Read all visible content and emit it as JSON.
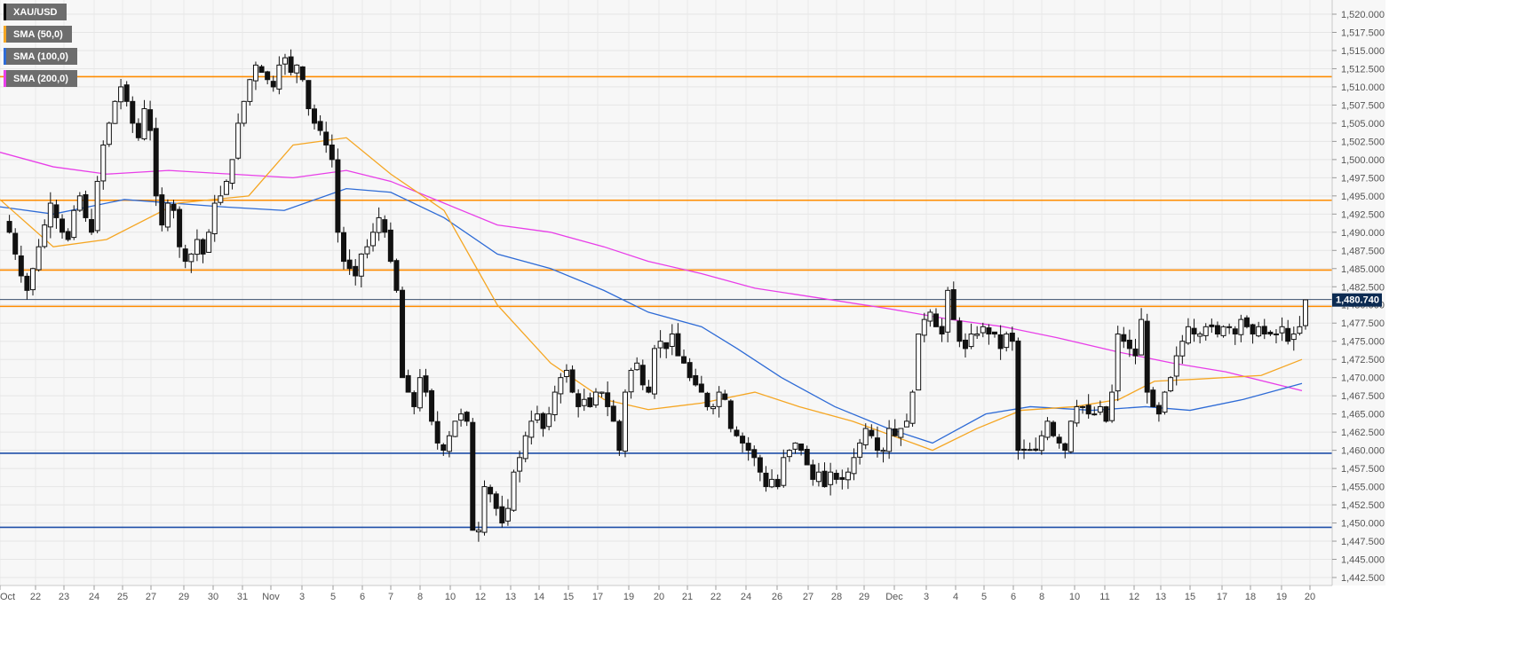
{
  "chart_data": {
    "type": "candlestick",
    "symbol": "XAU/USD",
    "legend": [
      {
        "label": "XAU/USD",
        "color": "#000000"
      },
      {
        "label": "SMA (50,0)",
        "color": "#f5a623"
      },
      {
        "label": "SMA (100,0)",
        "color": "#2e6bd6"
      },
      {
        "label": "SMA (200,0)",
        "color": "#e83ee8"
      }
    ],
    "ylim": [
      1440.5,
      1522.5
    ],
    "y_ticks": [
      "1,520.000",
      "1,517.500",
      "1,515.000",
      "1,512.500",
      "1,510.000",
      "1,507.500",
      "1,505.000",
      "1,502.500",
      "1,500.000",
      "1,497.500",
      "1,495.000",
      "1,492.500",
      "1,490.000",
      "1,487.500",
      "1,485.000",
      "1,482.500",
      "1,480.000",
      "1,477.500",
      "1,475.000",
      "1,472.500",
      "1,470.000",
      "1,467.500",
      "1,465.000",
      "1,462.500",
      "1,460.000",
      "1,457.500",
      "1,455.000",
      "1,452.500",
      "1,450.000",
      "1,447.500",
      "1,445.000",
      "1,442.500"
    ],
    "x_ticks": [
      "Oct",
      "22",
      "23",
      "24",
      "25",
      "27",
      "29",
      "30",
      "31",
      "Nov",
      "3",
      "5",
      "6",
      "7",
      "8",
      "10",
      "12",
      "13",
      "14",
      "15",
      "17",
      "19",
      "20",
      "21",
      "22",
      "24",
      "26",
      "27",
      "28",
      "29",
      "Dec",
      "3",
      "4",
      "5",
      "6",
      "8",
      "10",
      "11",
      "12",
      "13",
      "15",
      "17",
      "18",
      "19",
      "20"
    ],
    "current_price": "1,480.740",
    "current_price_value": 1480.74,
    "horizontal_levels": [
      {
        "value": 1511.4,
        "color": "#ff8c00"
      },
      {
        "value": 1494.4,
        "color": "#ff8c00"
      },
      {
        "value": 1484.8,
        "color": "#ff8c00"
      },
      {
        "value": 1479.8,
        "color": "#ff8c00"
      },
      {
        "value": 1459.6,
        "color": "#1f4fa8"
      },
      {
        "value": 1449.4,
        "color": "#1f4fa8"
      }
    ],
    "close_path": [
      1491.5,
      1490,
      1487,
      1484,
      1482,
      1485,
      1488,
      1491,
      1494,
      1492,
      1490,
      1489,
      1493,
      1495,
      1492,
      1490,
      1497,
      1502,
      1505,
      1508,
      1510,
      1508,
      1505,
      1503,
      1507,
      1504,
      1495,
      1491,
      1494,
      1493,
      1488,
      1486,
      1487,
      1489,
      1487,
      1490,
      1494,
      1495,
      1497,
      1500,
      1505,
      1508,
      1511,
      1513,
      1512,
      1511,
      1510,
      1513,
      1514,
      1512,
      1513,
      1511,
      1507,
      1505,
      1504,
      1502,
      1500,
      1490,
      1486,
      1485,
      1484,
      1487,
      1488,
      1490,
      1492,
      1490,
      1486,
      1482,
      1470,
      1468,
      1466,
      1470,
      1468,
      1464,
      1461,
      1460,
      1462,
      1464,
      1465,
      1464,
      1449,
      1449,
      1455,
      1454,
      1452,
      1450,
      1452,
      1457,
      1459,
      1462,
      1464,
      1465,
      1463,
      1465,
      1468,
      1470,
      1471,
      1468,
      1466,
      1467,
      1466,
      1468,
      1468,
      1466,
      1464,
      1460,
      1468,
      1471,
      1472,
      1469,
      1468,
      1474,
      1475,
      1474,
      1476,
      1473,
      1472,
      1470,
      1469,
      1468,
      1466,
      1466,
      1468,
      1467,
      1463,
      1462,
      1461,
      1460,
      1459,
      1457,
      1455,
      1456,
      1455,
      1459,
      1460,
      1461,
      1460,
      1458,
      1456,
      1457,
      1455,
      1457,
      1456,
      1456,
      1457,
      1459,
      1461,
      1463,
      1462,
      1460,
      1460,
      1463,
      1462,
      1463,
      1464,
      1468,
      1476,
      1478,
      1479,
      1477,
      1476,
      1482,
      1478,
      1475,
      1474,
      1476,
      1476,
      1477,
      1476,
      1476,
      1474,
      1476,
      1475,
      1460,
      1460,
      1460,
      1460,
      1462,
      1464,
      1462,
      1461,
      1460,
      1464,
      1466,
      1466,
      1465,
      1465,
      1466,
      1464,
      1468,
      1476,
      1475,
      1474,
      1473,
      1478,
      1468,
      1466,
      1465,
      1468,
      1470,
      1473,
      1475,
      1477,
      1476,
      1476,
      1477,
      1477,
      1476,
      1477,
      1477,
      1476,
      1478,
      1477,
      1476,
      1477,
      1476,
      1476,
      1476,
      1477,
      1475,
      1476,
      1477,
      1480.7
    ],
    "sma50": [
      [
        0,
        1494.5
      ],
      [
        60,
        1488
      ],
      [
        120,
        1489
      ],
      [
        200,
        1494
      ],
      [
        280,
        1495
      ],
      [
        330,
        1502
      ],
      [
        390,
        1503
      ],
      [
        440,
        1498
      ],
      [
        500,
        1493
      ],
      [
        560,
        1480
      ],
      [
        620,
        1472
      ],
      [
        680,
        1467
      ],
      [
        730,
        1465.6
      ],
      [
        790,
        1466.5
      ],
      [
        850,
        1468
      ],
      [
        900,
        1466
      ],
      [
        960,
        1464
      ],
      [
        1050,
        1460
      ],
      [
        1100,
        1463
      ],
      [
        1150,
        1465.5
      ],
      [
        1210,
        1466
      ],
      [
        1260,
        1467
      ],
      [
        1300,
        1469.5
      ],
      [
        1350,
        1469.8
      ],
      [
        1420,
        1470.3
      ],
      [
        1466,
        1472.5
      ]
    ],
    "sma100": [
      [
        0,
        1493.5
      ],
      [
        60,
        1492.5
      ],
      [
        140,
        1494.5
      ],
      [
        250,
        1493.5
      ],
      [
        320,
        1493
      ],
      [
        390,
        1496
      ],
      [
        440,
        1495.5
      ],
      [
        500,
        1492
      ],
      [
        560,
        1487
      ],
      [
        620,
        1485
      ],
      [
        680,
        1482
      ],
      [
        730,
        1479
      ],
      [
        790,
        1477
      ],
      [
        830,
        1474
      ],
      [
        880,
        1470
      ],
      [
        940,
        1466
      ],
      [
        1000,
        1463
      ],
      [
        1050,
        1461
      ],
      [
        1110,
        1465
      ],
      [
        1160,
        1466
      ],
      [
        1230,
        1465.5
      ],
      [
        1290,
        1466
      ],
      [
        1340,
        1465.5
      ],
      [
        1400,
        1467
      ],
      [
        1466,
        1469.2
      ]
    ],
    "sma200": [
      [
        0,
        1501
      ],
      [
        60,
        1499
      ],
      [
        120,
        1498
      ],
      [
        190,
        1498.5
      ],
      [
        260,
        1498
      ],
      [
        330,
        1497.5
      ],
      [
        390,
        1498.5
      ],
      [
        440,
        1497
      ],
      [
        500,
        1494
      ],
      [
        560,
        1491
      ],
      [
        620,
        1490
      ],
      [
        680,
        1488
      ],
      [
        730,
        1486
      ],
      [
        790,
        1484.3
      ],
      [
        850,
        1482.3
      ],
      [
        920,
        1481
      ],
      [
        1000,
        1479.5
      ],
      [
        1070,
        1478
      ],
      [
        1130,
        1477
      ],
      [
        1190,
        1475.5
      ],
      [
        1260,
        1473.5
      ],
      [
        1320,
        1472
      ],
      [
        1380,
        1470.8
      ],
      [
        1466,
        1468.2
      ]
    ]
  }
}
